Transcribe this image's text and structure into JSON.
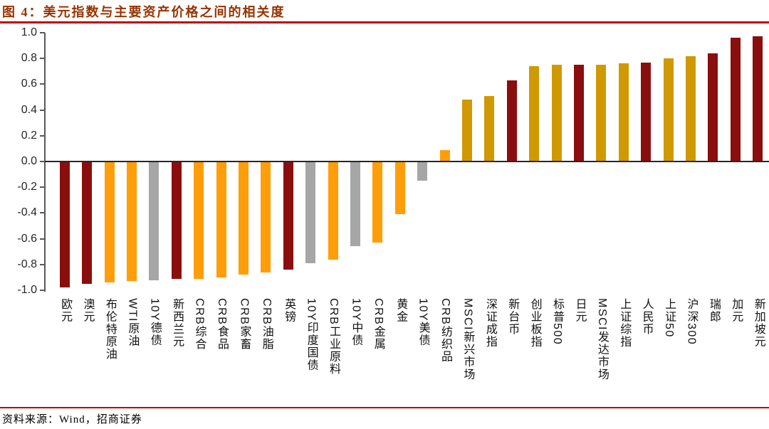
{
  "header": {
    "title": "图 4：美元指数与主要资产价格之间的相关度"
  },
  "footer": {
    "source": "资料来源：Wind，招商证券"
  },
  "colors": {
    "title_text": "#993300",
    "rule_red": "#C00000",
    "axis_gray": "#595959",
    "zero_line": "#262626",
    "tick_text": "#262626",
    "bars": {
      "dark_red": "#8B0E0E",
      "orange": "#FF9E09",
      "gray": "#A6A6A6",
      "gold": "#D09900"
    }
  },
  "chart_data": {
    "type": "bar",
    "title": "美元指数与主要资产价格之间的相关度",
    "xlabel": "",
    "ylabel": "",
    "ylim": [
      -1.0,
      1.0
    ],
    "ytick_labels": [
      "1.0",
      "0.8",
      "0.6",
      "0.4",
      "0.2",
      "0.0",
      "-0.2",
      "-0.4",
      "-0.6",
      "-0.8",
      "-1.0"
    ],
    "grid": false,
    "legend": false,
    "categories": [
      "欧元",
      "澳元",
      "布伦特原油",
      "WTI原油",
      "10Y德债",
      "新西兰元",
      "CRB综合",
      "CRB食品",
      "CRB家畜",
      "CRB油脂",
      "英镑",
      "10Y印度国债",
      "CRB工业原料",
      "10Y中债",
      "CRB金属",
      "黄金",
      "10Y美债",
      "CRB纺织品",
      "MSCI新兴市场",
      "深证成指",
      "新台币",
      "创业板指",
      "标普500",
      "日元",
      "MSCI发达市场",
      "上证综指",
      "人民币",
      "上证50",
      "沪深300",
      "瑞郎",
      "加元",
      "新加坡元"
    ],
    "values": [
      -0.98,
      -0.95,
      -0.94,
      -0.93,
      -0.92,
      -0.91,
      -0.91,
      -0.9,
      -0.88,
      -0.86,
      -0.84,
      -0.79,
      -0.76,
      -0.66,
      -0.63,
      -0.41,
      -0.15,
      0.09,
      0.48,
      0.51,
      0.63,
      0.74,
      0.75,
      0.75,
      0.75,
      0.76,
      0.77,
      0.8,
      0.82,
      0.84,
      0.96,
      0.97
    ],
    "bar_color_keys": [
      "dark_red",
      "dark_red",
      "orange",
      "orange",
      "gray",
      "dark_red",
      "orange",
      "orange",
      "orange",
      "orange",
      "dark_red",
      "gray",
      "orange",
      "gray",
      "orange",
      "orange",
      "gray",
      "orange",
      "gold",
      "gold",
      "dark_red",
      "gold",
      "gold",
      "dark_red",
      "gold",
      "gold",
      "dark_red",
      "gold",
      "gold",
      "dark_red",
      "dark_red",
      "dark_red"
    ]
  }
}
